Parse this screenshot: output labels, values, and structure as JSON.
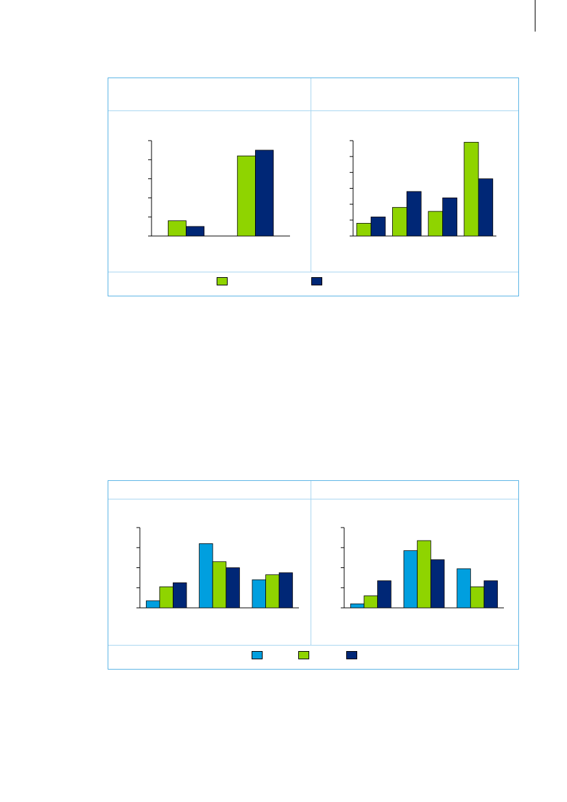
{
  "colors": {
    "frame": "#5bb4e5",
    "divider": "#a9d6f0",
    "blue": "#009fdf",
    "green": "#8fd400",
    "navy": "#002776"
  },
  "figure1": {
    "legend": [
      {
        "label": "",
        "color": "#8fd400"
      },
      {
        "label": "",
        "color": "#002776"
      }
    ],
    "panels": [
      {
        "title": "",
        "chart_data": {
          "type": "bar",
          "categories": [
            "",
            ""
          ],
          "series": [
            {
              "color": "#8fd400",
              "values": [
                0.8,
                4.2
              ]
            },
            {
              "color": "#002776",
              "values": [
                0.5,
                4.5
              ]
            }
          ],
          "ylim": [
            0,
            5
          ],
          "yticks": [
            0,
            1,
            2,
            3,
            4,
            5
          ]
        }
      },
      {
        "title": "",
        "chart_data": {
          "type": "bar",
          "categories": [
            "",
            "",
            "",
            ""
          ],
          "series": [
            {
              "color": "#8fd400",
              "values": [
                0.8,
                1.8,
                1.55,
                5.9
              ]
            },
            {
              "color": "#002776",
              "values": [
                1.2,
                2.8,
                2.4,
                3.6
              ]
            }
          ],
          "ylim": [
            0,
            6
          ],
          "yticks": [
            0,
            1,
            2,
            3,
            4,
            5,
            6
          ]
        }
      }
    ]
  },
  "figure2": {
    "legend": [
      {
        "label": "",
        "color": "#009fdf"
      },
      {
        "label": "",
        "color": "#8fd400"
      },
      {
        "label": "",
        "color": "#002776"
      }
    ],
    "panels": [
      {
        "title": "",
        "chart_data": {
          "type": "bar",
          "categories": [
            "",
            "",
            ""
          ],
          "series": [
            {
              "color": "#009fdf",
              "values": [
                0.35,
                3.2,
                1.4
              ]
            },
            {
              "color": "#8fd400",
              "values": [
                1.05,
                2.3,
                1.65
              ]
            },
            {
              "color": "#002776",
              "values": [
                1.25,
                2.0,
                1.75
              ]
            }
          ],
          "ylim": [
            0,
            4
          ],
          "yticks": [
            0,
            1,
            2,
            3,
            4
          ]
        }
      },
      {
        "title": "",
        "chart_data": {
          "type": "bar",
          "categories": [
            "",
            "",
            ""
          ],
          "series": [
            {
              "color": "#009fdf",
              "values": [
                0.2,
                2.85,
                1.95
              ]
            },
            {
              "color": "#8fd400",
              "values": [
                0.6,
                3.35,
                1.05
              ]
            },
            {
              "color": "#002776",
              "values": [
                1.35,
                2.4,
                1.35
              ]
            }
          ],
          "ylim": [
            0,
            4
          ],
          "yticks": [
            0,
            1,
            2,
            3,
            4
          ]
        }
      }
    ]
  }
}
